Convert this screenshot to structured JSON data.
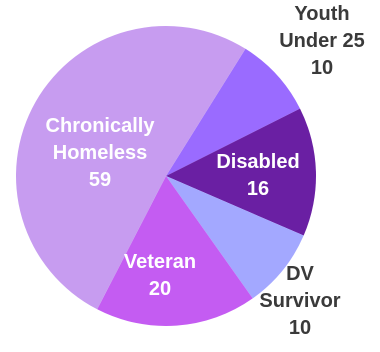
{
  "chart_data": {
    "type": "pie",
    "title": "",
    "slices": [
      {
        "label_lines": [
          "Youth",
          "Under 25"
        ],
        "value": 10,
        "color": "#9A6BFF",
        "label_color": "#3a3a3a"
      },
      {
        "label_lines": [
          "Disabled"
        ],
        "value": 16,
        "color": "#6A1FA3",
        "label_color": "#ffffff"
      },
      {
        "label_lines": [
          "DV",
          "Survivor"
        ],
        "value": 10,
        "color": "#A3A8FF",
        "label_color": "#3a3a3a"
      },
      {
        "label_lines": [
          "Veteran"
        ],
        "value": 20,
        "color": "#C45CF2",
        "label_color": "#ffffff"
      },
      {
        "label_lines": [
          "Chronically",
          "Homeless"
        ],
        "value": 59,
        "color": "#C79CF0",
        "label_color": "#ffffff"
      }
    ],
    "start_angle_deg": 32,
    "direction": "clockwise",
    "legend": "none",
    "grid": false
  }
}
